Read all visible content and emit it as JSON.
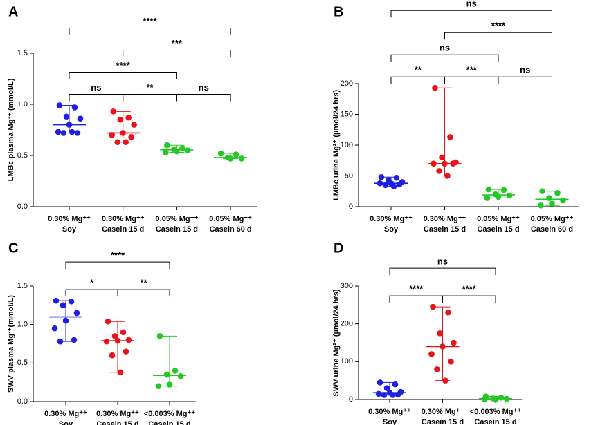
{
  "chart_data": [
    {
      "type": "scatter",
      "panel": "A",
      "ylabel": "LMBc plasma Mg²⁺ (mmol/L)",
      "categories": [
        [
          "0.30% Mg⁺⁺",
          "Soy"
        ],
        [
          "0.30% Mg⁺⁺",
          "Casein 15 d"
        ],
        [
          "0.05% Mg⁺⁺",
          "Casein 15 d"
        ],
        [
          "0.05% Mg⁺⁺",
          "Casein 60 d"
        ]
      ],
      "colors": [
        "#1f1fe0",
        "#e8141b",
        "#22c922",
        "#22c922"
      ],
      "values": [
        [
          0.99,
          0.97,
          0.88,
          0.86,
          0.8,
          0.73,
          0.72,
          0.72,
          0.73
        ],
        [
          0.93,
          0.87,
          0.85,
          0.8,
          0.72,
          0.7,
          0.68,
          0.63,
          0.63
        ],
        [
          0.6,
          0.57,
          0.56,
          0.55,
          0.54,
          0.53
        ],
        [
          0.52,
          0.51,
          0.48,
          0.47,
          0.47
        ]
      ],
      "ylim": [
        0,
        1.5
      ],
      "yticks": [
        {
          "value": 0,
          "label": "0.0"
        },
        0.5,
        {
          "value": 1,
          "label": "1.0"
        },
        1.5
      ],
      "comparisons": [
        {
          "groups": [
            0,
            1
          ],
          "label": "ns"
        },
        {
          "groups": [
            1,
            2
          ],
          "label": "**"
        },
        {
          "groups": [
            2,
            3
          ],
          "label": "ns"
        },
        {
          "groups": [
            0,
            2
          ],
          "label": "****"
        },
        {
          "groups": [
            1,
            3
          ],
          "label": "***"
        },
        {
          "groups": [
            0,
            3
          ],
          "label": "****"
        }
      ]
    },
    {
      "type": "scatter",
      "panel": "B",
      "ylabel": "LMBc urine Mg²⁺ (µmol/24 hrs)",
      "categories": [
        [
          "0.30% Mg⁺⁺",
          "Soy"
        ],
        [
          "0.30% Mg⁺⁺",
          "Casein 15 d"
        ],
        [
          "0.05% Mg⁺⁺",
          "Casein 15 d"
        ],
        [
          "0.05% Mg⁺⁺",
          "Casein 60 d"
        ]
      ],
      "colors": [
        "#1f1fe0",
        "#e8141b",
        "#22c922",
        "#22c922"
      ],
      "values": [
        [
          48,
          47,
          43,
          40,
          38,
          38,
          36,
          35,
          33
        ],
        [
          193,
          113,
          80,
          72,
          70,
          70,
          70,
          58,
          50
        ],
        [
          28,
          27,
          20,
          18,
          16,
          14
        ],
        [
          25,
          22,
          14,
          10,
          5,
          2
        ]
      ],
      "ylim": [
        0,
        200
      ],
      "yticks": [
        0,
        50,
        100,
        150,
        200
      ],
      "comparisons": [
        {
          "groups": [
            0,
            1
          ],
          "label": "**"
        },
        {
          "groups": [
            1,
            2
          ],
          "label": "***"
        },
        {
          "groups": [
            2,
            3
          ],
          "label": "ns"
        },
        {
          "groups": [
            0,
            2
          ],
          "label": "ns"
        },
        {
          "groups": [
            1,
            3
          ],
          "label": "****"
        },
        {
          "groups": [
            0,
            3
          ],
          "label": "ns"
        }
      ]
    },
    {
      "type": "scatter",
      "panel": "C",
      "ylabel": "SWV plasma Mg²⁺(mmol/L)",
      "categories": [
        [
          "0.30% Mg⁺⁺",
          "Soy"
        ],
        [
          "0.30% Mg⁺⁺",
          "Casein 15 d"
        ],
        [
          "<0.003% Mg⁺⁺",
          "Casein 15 d"
        ]
      ],
      "colors": [
        "#1f1fe0",
        "#e8141b",
        "#22c922"
      ],
      "values": [
        [
          1.31,
          1.3,
          1.25,
          1.15,
          1.05,
          0.95,
          0.8,
          0.78
        ],
        [
          1.04,
          0.9,
          0.85,
          0.8,
          0.79,
          0.78,
          0.65,
          0.6,
          0.38
        ],
        [
          0.85,
          0.4,
          0.35,
          0.33,
          0.22,
          0.2
        ]
      ],
      "ylim": [
        0,
        1.5
      ],
      "yticks": [
        {
          "value": 0,
          "label": "0.0"
        },
        0.5,
        {
          "value": 1,
          "label": "1.0"
        },
        1.5
      ],
      "comparisons": [
        {
          "groups": [
            0,
            1
          ],
          "label": "*"
        },
        {
          "groups": [
            1,
            2
          ],
          "label": "**"
        },
        {
          "groups": [
            0,
            2
          ],
          "label": "****"
        }
      ]
    },
    {
      "type": "scatter",
      "panel": "D",
      "ylabel": "SWV urine Mg²⁺ (µmol/24 hrs)",
      "categories": [
        [
          "0.30% Mg⁺⁺",
          "Soy"
        ],
        [
          "0.30% Mg⁺⁺",
          "Casein 15 d"
        ],
        [
          "<0.003% Mg⁺⁺",
          "Casein 15 d"
        ]
      ],
      "colors": [
        "#1f1fe0",
        "#e8141b",
        "#22c922"
      ],
      "values": [
        [
          45,
          40,
          30,
          20,
          18,
          15,
          13,
          12,
          12
        ],
        [
          245,
          230,
          175,
          150,
          140,
          120,
          100,
          80,
          50
        ],
        [
          8,
          5,
          3,
          2,
          1,
          1
        ]
      ],
      "ylim": [
        0,
        300
      ],
      "yticks": [
        0,
        100,
        200,
        300
      ],
      "comparisons": [
        {
          "groups": [
            0,
            1
          ],
          "label": "****"
        },
        {
          "groups": [
            1,
            2
          ],
          "label": "****"
        },
        {
          "groups": [
            0,
            2
          ],
          "label": "ns"
        }
      ]
    }
  ]
}
